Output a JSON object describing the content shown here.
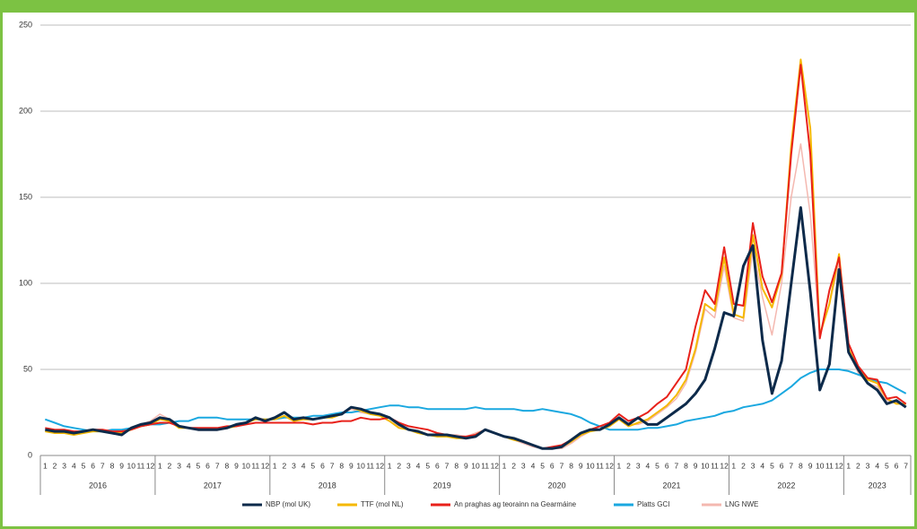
{
  "chart_data": {
    "type": "line",
    "categories": [
      "1",
      "2",
      "3",
      "4",
      "5",
      "6",
      "7",
      "8",
      "9",
      "10",
      "11",
      "12",
      "1",
      "2",
      "3",
      "4",
      "5",
      "6",
      "7",
      "8",
      "9",
      "10",
      "11",
      "12",
      "1",
      "2",
      "3",
      "4",
      "5",
      "6",
      "7",
      "8",
      "9",
      "10",
      "11",
      "12",
      "1",
      "2",
      "3",
      "4",
      "5",
      "6",
      "7",
      "8",
      "9",
      "10",
      "11",
      "12",
      "1",
      "2",
      "3",
      "4",
      "5",
      "6",
      "7",
      "8",
      "9",
      "10",
      "11",
      "12",
      "1",
      "2",
      "3",
      "4",
      "5",
      "6",
      "7",
      "8",
      "9",
      "10",
      "11",
      "12",
      "1",
      "2",
      "3",
      "4",
      "5",
      "6",
      "7",
      "8",
      "9",
      "10",
      "11",
      "12",
      "1",
      "2",
      "3",
      "4",
      "5",
      "6",
      "7"
    ],
    "years": [
      "2016",
      "2017",
      "2018",
      "2019",
      "2020",
      "2021",
      "2022",
      "2023"
    ],
    "ylim": [
      0,
      250
    ],
    "yticks": [
      0,
      50,
      100,
      150,
      200,
      250
    ],
    "grid": true,
    "series": [
      {
        "name": "NBP (mol UK)",
        "color": "#0d2a4a",
        "width": 3,
        "values": [
          15,
          14,
          14,
          13,
          14,
          15,
          14,
          13,
          12,
          16,
          18,
          19,
          22,
          21,
          17,
          16,
          15,
          15,
          15,
          16,
          18,
          19,
          22,
          20,
          22,
          25,
          21,
          22,
          21,
          22,
          23,
          24,
          28,
          27,
          25,
          24,
          22,
          18,
          15,
          14,
          12,
          12,
          12,
          11,
          10,
          11,
          15,
          13,
          11,
          10,
          8,
          6,
          4,
          4,
          5,
          9,
          13,
          15,
          15,
          18,
          22,
          18,
          22,
          18,
          18,
          22,
          26,
          30,
          36,
          44,
          62,
          83,
          81,
          110,
          122,
          67,
          36,
          55,
          100,
          144,
          95,
          38,
          53,
          108,
          60,
          50,
          42,
          38,
          30,
          32,
          28
        ]
      },
      {
        "name": "TTF (mol NL)",
        "color": "#f5b800",
        "width": 2,
        "values": [
          14,
          13,
          13,
          12,
          13,
          14,
          14,
          13,
          13,
          15,
          17,
          18,
          21,
          20,
          16,
          16,
          15,
          15,
          15,
          16,
          17,
          19,
          21,
          21,
          21,
          23,
          20,
          21,
          21,
          22,
          22,
          24,
          28,
          26,
          24,
          23,
          20,
          16,
          15,
          13,
          12,
          11,
          11,
          10,
          10,
          12,
          15,
          13,
          11,
          9,
          8,
          6,
          4,
          4,
          5,
          8,
          12,
          14,
          15,
          17,
          21,
          17,
          19,
          21,
          25,
          29,
          35,
          44,
          62,
          88,
          84,
          115,
          82,
          80,
          128,
          97,
          86,
          105,
          180,
          230,
          190,
          70,
          88,
          117,
          62,
          50,
          44,
          42,
          33,
          30,
          30
        ]
      },
      {
        "name": "An praghas ag teorainn na Gearmáine",
        "color": "#e8211a",
        "width": 2,
        "values": [
          16,
          15,
          15,
          14,
          14,
          15,
          15,
          14,
          14,
          15,
          17,
          18,
          19,
          19,
          17,
          16,
          16,
          16,
          16,
          17,
          17,
          18,
          19,
          19,
          19,
          19,
          19,
          19,
          18,
          19,
          19,
          20,
          20,
          22,
          21,
          21,
          22,
          19,
          17,
          16,
          15,
          13,
          12,
          11,
          11,
          12,
          15,
          13,
          11,
          10,
          8,
          6,
          4,
          5,
          6,
          9,
          13,
          15,
          17,
          19,
          24,
          20,
          22,
          25,
          30,
          34,
          42,
          50,
          75,
          96,
          88,
          121,
          88,
          87,
          135,
          104,
          89,
          106,
          175,
          227,
          175,
          68,
          96,
          115,
          65,
          52,
          45,
          44,
          33,
          34,
          30
        ]
      },
      {
        "name": "Platts GCI",
        "color": "#1aa8e0",
        "width": 2,
        "values": [
          21,
          19,
          17,
          16,
          15,
          14,
          14,
          15,
          15,
          16,
          17,
          18,
          18,
          19,
          20,
          20,
          22,
          22,
          22,
          21,
          21,
          21,
          21,
          21,
          21,
          22,
          22,
          22,
          23,
          23,
          24,
          25,
          25,
          26,
          27,
          28,
          29,
          29,
          28,
          28,
          27,
          27,
          27,
          27,
          27,
          28,
          27,
          27,
          27,
          27,
          26,
          26,
          27,
          26,
          25,
          24,
          22,
          19,
          17,
          15,
          15,
          15,
          15,
          16,
          16,
          17,
          18,
          20,
          21,
          22,
          23,
          25,
          26,
          28,
          29,
          30,
          32,
          36,
          40,
          45,
          48,
          50,
          50,
          50,
          49,
          47,
          45,
          43,
          42,
          39,
          36
        ]
      },
      {
        "name": "LNG NWE",
        "color": "#f4b8b0",
        "width": 1.5,
        "values": [
          14,
          13,
          13,
          12,
          13,
          14,
          14,
          13,
          13,
          15,
          18,
          20,
          24,
          21,
          17,
          16,
          15,
          15,
          15,
          16,
          17,
          19,
          22,
          21,
          21,
          23,
          20,
          21,
          21,
          22,
          22,
          24,
          27,
          25,
          24,
          23,
          20,
          17,
          15,
          13,
          12,
          11,
          12,
          12,
          11,
          13,
          15,
          13,
          11,
          9,
          7,
          5,
          4,
          4,
          4,
          7,
          11,
          14,
          15,
          17,
          21,
          18,
          18,
          20,
          24,
          28,
          33,
          42,
          60,
          85,
          80,
          110,
          80,
          78,
          120,
          92,
          70,
          100,
          150,
          181,
          140,
          70,
          88,
          112,
          60,
          48,
          42,
          40,
          32,
          31,
          29
        ]
      }
    ]
  }
}
